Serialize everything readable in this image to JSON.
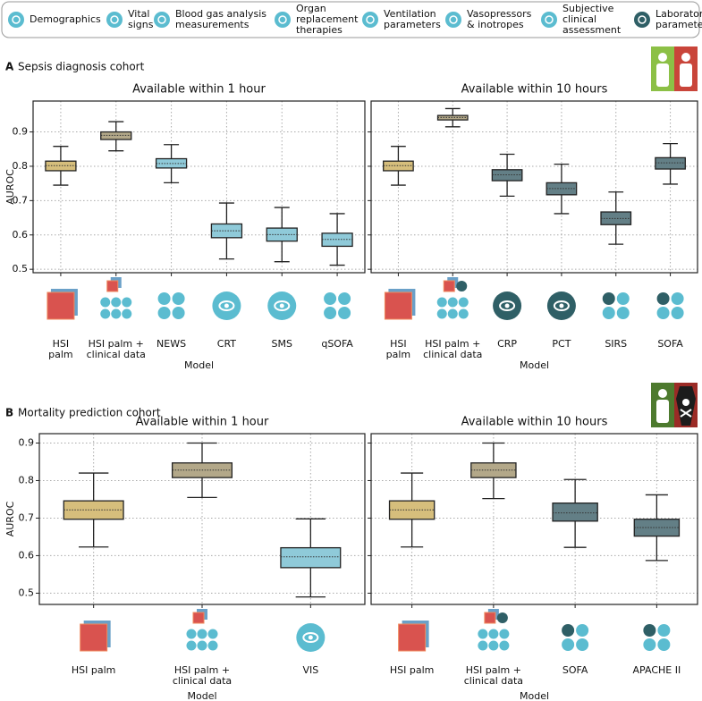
{
  "legend": [
    [
      "Demographics"
    ],
    [
      "Vital",
      "signs"
    ],
    [
      "Blood gas analysis",
      "measurements"
    ],
    [
      "Organ",
      "replacement",
      "therapies"
    ],
    [
      "Ventilation",
      "parameters"
    ],
    [
      "Vasopressors",
      "& inotropes"
    ],
    [
      "Subjective",
      "clinical",
      "assessment"
    ],
    [
      "Laboratory",
      "parameters"
    ]
  ],
  "panels": [
    {
      "letter": "A",
      "title": "Sepsis diagnosis cohort"
    },
    {
      "letter": "B",
      "title": "Mortality prediction cohort"
    }
  ],
  "chart_data": [
    {
      "type": "box",
      "title": "Available within 1 hour",
      "ylabel": "AUROC",
      "xlabel": "Model",
      "grid": true,
      "ylim": [
        0.49,
        0.99
      ],
      "yticks": [
        0.5,
        0.6,
        0.7,
        0.8,
        0.9
      ],
      "categories": [
        [
          "HSI",
          "palm"
        ],
        [
          "HSI palm +",
          "clinical data"
        ],
        [
          "NEWS"
        ],
        [
          "CRT"
        ],
        [
          "SMS"
        ],
        [
          "qSOFA"
        ]
      ],
      "colors": [
        "#d6be7c",
        "#b3a889",
        "#8fcad9",
        "#8fcad9",
        "#8fcad9",
        "#8fcad9"
      ],
      "boxes": [
        {
          "min": 0.745,
          "q1": 0.787,
          "median": 0.802,
          "q3": 0.815,
          "max": 0.858
        },
        {
          "min": 0.845,
          "q1": 0.878,
          "median": 0.89,
          "q3": 0.9,
          "max": 0.93
        },
        {
          "min": 0.752,
          "q1": 0.795,
          "median": 0.808,
          "q3": 0.822,
          "max": 0.863
        },
        {
          "min": 0.53,
          "q1": 0.592,
          "median": 0.612,
          "q3": 0.632,
          "max": 0.693
        },
        {
          "min": 0.522,
          "q1": 0.582,
          "median": 0.601,
          "q3": 0.62,
          "max": 0.68
        },
        {
          "min": 0.512,
          "q1": 0.567,
          "median": 0.587,
          "q3": 0.605,
          "max": 0.662
        }
      ]
    },
    {
      "type": "box",
      "title": "Available within 10 hours",
      "xlabel": "Model",
      "grid": true,
      "ylim": [
        0.49,
        0.99
      ],
      "yticks": [
        0.5,
        0.6,
        0.7,
        0.8,
        0.9
      ],
      "categories": [
        [
          "HSI",
          "palm"
        ],
        [
          "HSI palm +",
          "clinical data"
        ],
        [
          "CRP"
        ],
        [
          "PCT"
        ],
        [
          "SIRS"
        ],
        [
          "SOFA"
        ]
      ],
      "colors": [
        "#d6be7c",
        "#b3a889",
        "#637f86",
        "#637f86",
        "#637f86",
        "#637f86"
      ],
      "boxes": [
        {
          "min": 0.745,
          "q1": 0.787,
          "median": 0.802,
          "q3": 0.815,
          "max": 0.858
        },
        {
          "min": 0.915,
          "q1": 0.935,
          "median": 0.942,
          "q3": 0.948,
          "max": 0.968
        },
        {
          "min": 0.713,
          "q1": 0.758,
          "median": 0.775,
          "q3": 0.79,
          "max": 0.835
        },
        {
          "min": 0.662,
          "q1": 0.717,
          "median": 0.735,
          "q3": 0.752,
          "max": 0.806
        },
        {
          "min": 0.573,
          "q1": 0.63,
          "median": 0.648,
          "q3": 0.667,
          "max": 0.725
        },
        {
          "min": 0.748,
          "q1": 0.792,
          "median": 0.81,
          "q3": 0.825,
          "max": 0.866
        }
      ]
    },
    {
      "type": "box",
      "title": "Available within 1 hour",
      "ylabel": "AUROC",
      "xlabel": "Model",
      "grid": true,
      "ylim": [
        0.47,
        0.925
      ],
      "yticks": [
        0.5,
        0.6,
        0.7,
        0.8,
        0.9
      ],
      "categories": [
        [
          "HSI palm"
        ],
        [
          "HSI palm +",
          "clinical data"
        ],
        [
          "VIS"
        ]
      ],
      "colors": [
        "#d6be7c",
        "#b3a889",
        "#8fcad9"
      ],
      "boxes": [
        {
          "min": 0.623,
          "q1": 0.697,
          "median": 0.722,
          "q3": 0.746,
          "max": 0.82
        },
        {
          "min": 0.755,
          "q1": 0.808,
          "median": 0.828,
          "q3": 0.847,
          "max": 0.9
        },
        {
          "min": 0.49,
          "q1": 0.568,
          "median": 0.597,
          "q3": 0.621,
          "max": 0.698
        }
      ]
    },
    {
      "type": "box",
      "title": "Available within 10 hours",
      "xlabel": "Model",
      "grid": true,
      "ylim": [
        0.47,
        0.925
      ],
      "yticks": [
        0.5,
        0.6,
        0.7,
        0.8,
        0.9
      ],
      "categories": [
        [
          "HSI palm"
        ],
        [
          "HSI palm +",
          "clinical data"
        ],
        [
          "SOFA"
        ],
        [
          "APACHE II"
        ]
      ],
      "colors": [
        "#d6be7c",
        "#b3a889",
        "#637f86",
        "#637f86"
      ],
      "boxes": [
        {
          "min": 0.623,
          "q1": 0.697,
          "median": 0.722,
          "q3": 0.746,
          "max": 0.82
        },
        {
          "min": 0.752,
          "q1": 0.808,
          "median": 0.828,
          "q3": 0.847,
          "max": 0.9
        },
        {
          "min": 0.622,
          "q1": 0.692,
          "median": 0.714,
          "q3": 0.74,
          "max": 0.803
        },
        {
          "min": 0.587,
          "q1": 0.652,
          "median": 0.675,
          "q3": 0.697,
          "max": 0.762
        }
      ]
    }
  ]
}
